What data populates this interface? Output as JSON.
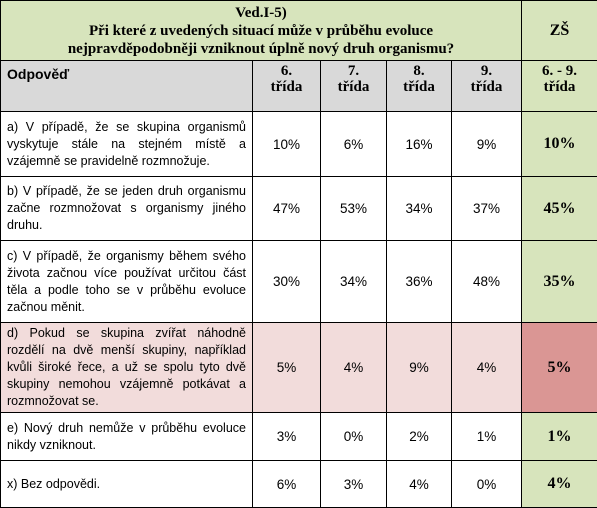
{
  "title": {
    "line1": "Ved.I-5)",
    "line2": "Při které z uvedených situací může v průběhu evoluce",
    "line3": "nejpravděpodobněji vzniknout úplně nový druh organismu?"
  },
  "zs_header": "ZŠ",
  "columns": {
    "answer": "Odpověď",
    "grade6": "6.\ntřída",
    "grade7": "7.\ntřída",
    "grade8": "8.\ntřída",
    "grade9": "9.\ntřída",
    "zs_range": "6. - 9.\ntřída"
  },
  "rows": [
    {
      "answer": "a) V případě, že se skupina organismů vyskytuje stále na stejném místě a vzájemně se pravidelně rozmnožuje.",
      "g6": "10%",
      "g7": "6%",
      "g8": "16%",
      "g9": "9%",
      "zs": "10%"
    },
    {
      "answer": "b) V případě, že se jeden druh organismu začne rozmnožovat s organismy jiného druhu.",
      "g6": "47%",
      "g7": "53%",
      "g8": "34%",
      "g9": "37%",
      "zs": "45%"
    },
    {
      "answer": "c) V případě, že organismy během svého života začnou více používat určitou část těla a podle toho se v průběhu evoluce začnou měnit.",
      "g6": "30%",
      "g7": "34%",
      "g8": "36%",
      "g9": "48%",
      "zs": "35%"
    },
    {
      "answer": "d) Pokud se skupina zvířat náhodně rozdělí na dvě menší skupiny, například kvůli široké řece, a už se spolu tyto dvě skupiny nemohou vzájemně potkávat a rozmnožovat se.",
      "g6": "5%",
      "g7": "4%",
      "g8": "9%",
      "g9": "4%",
      "zs": "5%"
    },
    {
      "answer": "e) Nový druh nemůže v průběhu evoluce nikdy vzniknout.",
      "g6": "3%",
      "g7": "0%",
      "g8": "2%",
      "g9": "1%",
      "zs": "1%"
    },
    {
      "answer": "x) Bez odpovědi.",
      "g6": "6%",
      "g7": "3%",
      "g8": "4%",
      "g9": "0%",
      "zs": "4%"
    }
  ],
  "colors": {
    "header_green": "#d7e4bc",
    "header_gray": "#d9d9d9",
    "highlight_row": "#f2dcdb",
    "highlight_zs": "#da9694"
  }
}
